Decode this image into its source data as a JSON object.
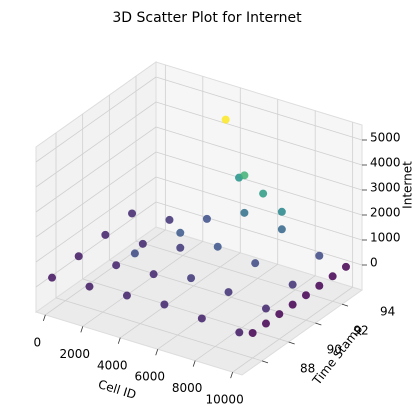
{
  "chart_data": {
    "type": "scatter3d",
    "title": "3D Scatter Plot for Internet",
    "x_label": "Cell ID",
    "y_label": "Time Stamp",
    "z_label": "Internet",
    "colormap": "viridis",
    "xlim": [
      -500,
      10500
    ],
    "ylim": [
      86.5,
      95.5
    ],
    "zlim": [
      -1000,
      5600
    ],
    "xticks": [
      0,
      2000,
      4000,
      6000,
      8000,
      10000
    ],
    "yticks": [
      88,
      90,
      92,
      94
    ],
    "zticks": [
      0,
      1000,
      2000,
      3000,
      4000,
      5000
    ],
    "grid": true,
    "x": [
      0,
      2000,
      4000,
      6000,
      8000,
      10000,
      0,
      2000,
      4000,
      6000,
      8000,
      10000,
      0,
      2000,
      4000,
      6000,
      8000,
      10000,
      0,
      2000,
      4000,
      6000,
      8000,
      10000,
      10000,
      10000,
      10000,
      10000,
      10000,
      10000,
      10000,
      10000,
      3000,
      4000,
      8000,
      5000,
      7000,
      6000,
      5000
    ],
    "y": [
      87,
      87,
      87,
      87,
      87,
      87,
      89,
      89,
      89,
      89,
      89,
      89,
      91,
      91,
      91,
      91,
      91,
      91,
      93,
      93,
      93,
      93,
      93,
      93,
      88,
      89,
      90,
      91,
      92,
      93,
      94,
      95,
      89,
      91,
      93,
      94,
      93,
      93,
      93
    ],
    "z": [
      300,
      400,
      500,
      600,
      500,
      400,
      400,
      500,
      600,
      900,
      800,
      600,
      500,
      600,
      900,
      1400,
      1200,
      800,
      600,
      800,
      1300,
      2000,
      1800,
      1200,
      0,
      0,
      0,
      0,
      0,
      0,
      0,
      0,
      1200,
      1500,
      2500,
      2800,
      3000,
      3500,
      5500
    ]
  }
}
